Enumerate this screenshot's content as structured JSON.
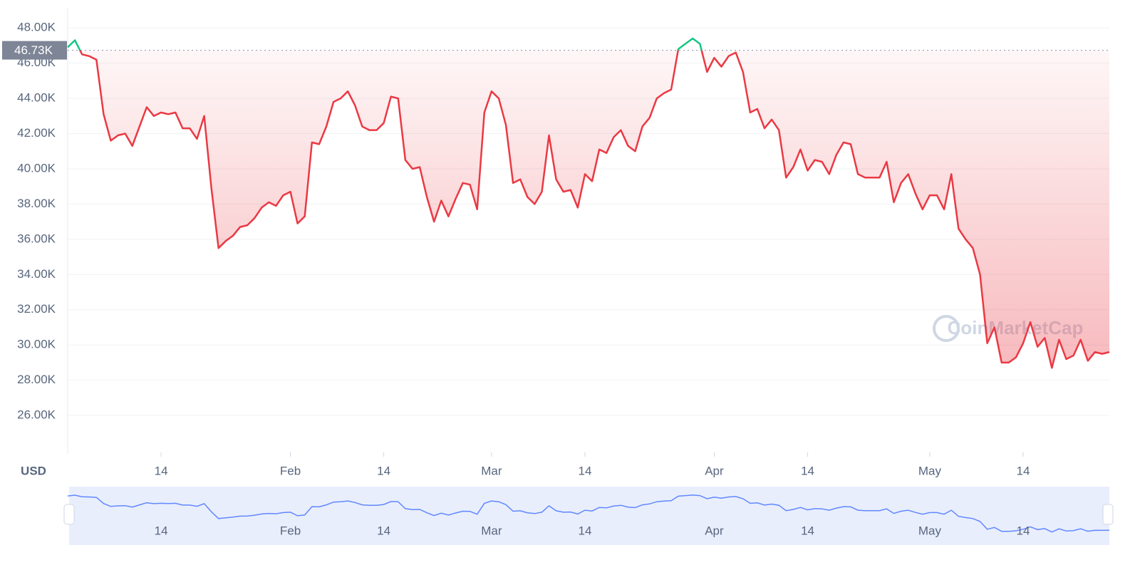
{
  "chart_data": {
    "type": "line",
    "currency": "USD",
    "watermark": "CoinMarketCap",
    "categories": [
      null,
      null,
      null,
      null,
      null,
      null,
      null,
      null,
      null,
      null,
      null,
      null,
      null,
      "14",
      null,
      null,
      null,
      null,
      null,
      null,
      null,
      null,
      null,
      null,
      null,
      null,
      null,
      null,
      null,
      null,
      null,
      "Feb",
      null,
      null,
      null,
      null,
      null,
      null,
      null,
      null,
      null,
      null,
      null,
      null,
      "14",
      null,
      null,
      null,
      null,
      null,
      null,
      null,
      null,
      null,
      null,
      null,
      null,
      null,
      null,
      "Mar",
      null,
      null,
      null,
      null,
      null,
      null,
      null,
      null,
      null,
      null,
      null,
      null,
      "14",
      null,
      null,
      null,
      null,
      null,
      null,
      null,
      null,
      null,
      null,
      null,
      null,
      null,
      null,
      null,
      null,
      null,
      "Apr",
      null,
      null,
      null,
      null,
      null,
      null,
      null,
      null,
      null,
      null,
      null,
      null,
      "14",
      null,
      null,
      null,
      null,
      null,
      null,
      null,
      null,
      null,
      null,
      null,
      null,
      null,
      null,
      null,
      null,
      "May",
      null,
      null,
      null,
      null,
      null,
      null,
      null,
      null,
      null,
      null,
      null,
      null,
      "14",
      null,
      null,
      null,
      null,
      null,
      null,
      null,
      null,
      null,
      null,
      null,
      null
    ],
    "values": [
      46900,
      47300,
      46500,
      46400,
      46200,
      43100,
      41600,
      41900,
      42000,
      41300,
      42400,
      43500,
      43000,
      43200,
      43100,
      43200,
      42300,
      42300,
      41700,
      43000,
      38900,
      35500,
      35900,
      36200,
      36700,
      36800,
      37200,
      37800,
      38100,
      37900,
      38500,
      38700,
      36900,
      37300,
      41500,
      41400,
      42400,
      43800,
      44000,
      44400,
      43600,
      42400,
      42200,
      42200,
      42600,
      44100,
      44000,
      40500,
      40000,
      40100,
      38400,
      37000,
      38200,
      37300,
      38300,
      39200,
      39100,
      37700,
      43200,
      44400,
      44000,
      42500,
      39200,
      39400,
      38400,
      38000,
      38700,
      41900,
      39400,
      38700,
      38800,
      37800,
      39700,
      39300,
      41100,
      40900,
      41800,
      42200,
      41300,
      41000,
      42400,
      42900,
      44000,
      44300,
      44500,
      46800,
      47100,
      47400,
      47100,
      45500,
      46300,
      45800,
      46400,
      46600,
      45500,
      43200,
      43400,
      42300,
      42800,
      42200,
      39500,
      40100,
      41100,
      39900,
      40500,
      40400,
      39700,
      40800,
      41500,
      41400,
      39700,
      39500,
      39500,
      39500,
      40400,
      38100,
      39200,
      39700,
      38600,
      37700,
      38500,
      38500,
      37700,
      39700,
      36600,
      36000,
      35500,
      34000,
      30100,
      31000,
      29000,
      29000,
      29300,
      30100,
      31300,
      29900,
      30400,
      28700,
      30300,
      29200,
      29400,
      30300,
      29100,
      29600,
      29500,
      29600
    ],
    "reference": {
      "value": 46730,
      "label": "46.73K"
    },
    "up_color": "#16c784",
    "down_color": "#ea3943",
    "navigator_color": "#6188ff",
    "ylim": [
      23900,
      49100
    ],
    "yticks": [
      {
        "value": 26000,
        "label": "26.00K"
      },
      {
        "value": 28000,
        "label": "28.00K"
      },
      {
        "value": 30000,
        "label": "30.00K"
      },
      {
        "value": 32000,
        "label": "32.00K"
      },
      {
        "value": 34000,
        "label": "34.00K"
      },
      {
        "value": 36000,
        "label": "36.00K"
      },
      {
        "value": 38000,
        "label": "38.00K"
      },
      {
        "value": 40000,
        "label": "40.00K"
      },
      {
        "value": 42000,
        "label": "42.00K"
      },
      {
        "value": 44000,
        "label": "44.00K"
      },
      {
        "value": 46000,
        "label": "46.00K"
      },
      {
        "value": 48000,
        "label": "48.00K"
      }
    ],
    "grid": true
  }
}
